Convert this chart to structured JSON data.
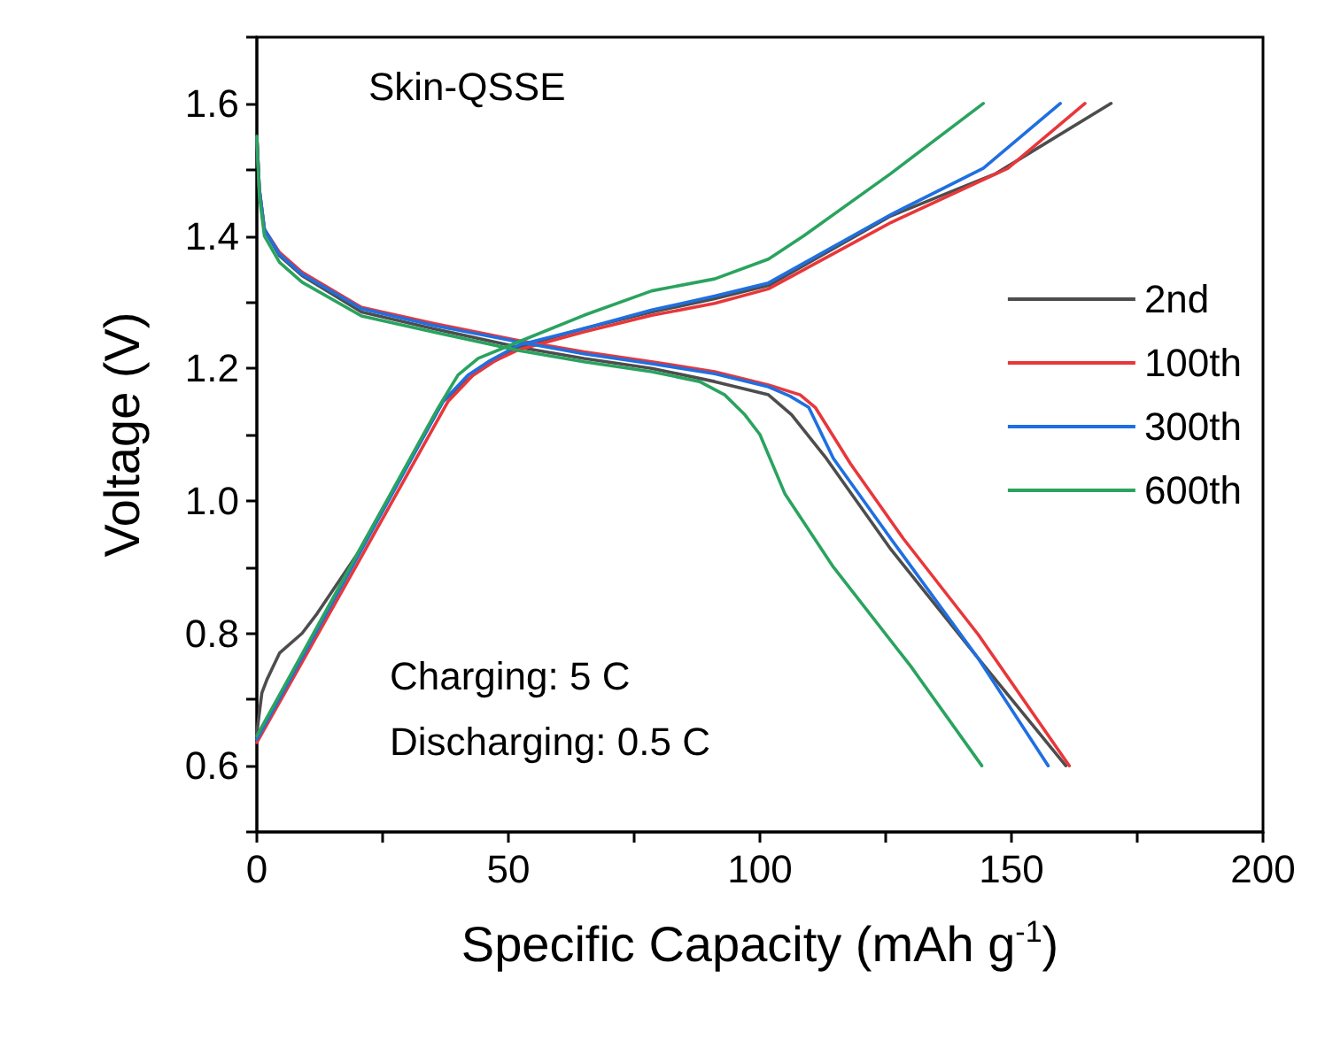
{
  "chart_data": {
    "type": "line",
    "xlabel": "Specific Capacity (mAh g$^{-1}$)",
    "ylabel": "Voltage (V)",
    "xlim": [
      0,
      200
    ],
    "ylim": [
      0.5,
      1.7
    ],
    "xticks": [
      0,
      {
        "value": 25,
        "label": null
      },
      50,
      {
        "value": 75,
        "label": null
      },
      100,
      {
        "value": 125,
        "label": null
      },
      150,
      {
        "value": 175,
        "label": null
      },
      200
    ],
    "yticks": [
      {
        "value": 0.5,
        "label": null
      },
      0.6,
      {
        "value": 0.7,
        "label": null
      },
      0.8,
      {
        "value": 0.9,
        "label": null
      },
      {
        "value": 1.0,
        "label": "1.0"
      },
      {
        "value": 1.1,
        "label": null
      },
      1.2,
      {
        "value": 1.3,
        "label": null
      },
      1.4,
      {
        "value": 1.5,
        "label": null
      },
      1.6,
      {
        "value": 1.7,
        "label": null
      }
    ],
    "grid": false,
    "legend": "right",
    "marker": "none",
    "line_style": "solid",
    "annotations": [
      "Skin-QSSE",
      "Charging: 5 C",
      "Discharging: 0.5 C"
    ],
    "series": [
      {
        "name": "2nd",
        "color": "#4d4d4d",
        "x": [
          0,
          1,
          2,
          4.5,
          9,
          12,
          20,
          37,
          43,
          47,
          52,
          65,
          78.5,
          91,
          101.7,
          126,
          146.9,
          169.8
        ],
        "values": [
          0.65,
          0.71,
          0.73,
          0.77,
          0.8,
          0.83,
          0.92,
          1.15,
          1.19,
          1.21,
          1.232,
          1.26,
          1.285,
          1.305,
          1.325,
          1.43,
          1.494,
          1.6
        ]
      },
      {
        "color": "#4d4d4d",
        "x": [
          0,
          0.5,
          1.5,
          4.5,
          9,
          20.8,
          35,
          52,
          65,
          78.5,
          91,
          101.7,
          106.3,
          113.2,
          126,
          143.4,
          160.8
        ],
        "values": [
          1.55,
          1.47,
          1.41,
          1.37,
          1.34,
          1.285,
          1.26,
          1.232,
          1.215,
          1.2,
          1.18,
          1.16,
          1.13,
          1.064,
          0.927,
          0.762,
          0.6
        ]
      },
      {
        "name": "100th",
        "color": "#e8373a",
        "x": [
          0,
          20,
          38,
          43,
          47,
          52,
          65,
          78.5,
          91,
          101.7,
          126,
          149.3,
          164.6
        ],
        "values": [
          0.635,
          0.905,
          1.15,
          1.19,
          1.21,
          1.228,
          1.255,
          1.28,
          1.298,
          1.32,
          1.42,
          1.502,
          1.6
        ]
      },
      {
        "color": "#e8373a",
        "x": [
          0,
          0.5,
          1.5,
          4.5,
          9,
          20.8,
          35,
          52,
          65,
          78.5,
          91,
          101.7,
          108,
          111,
          118,
          128.5,
          143.4,
          161.5
        ],
        "values": [
          1.55,
          1.47,
          1.41,
          1.375,
          1.345,
          1.292,
          1.268,
          1.242,
          1.225,
          1.21,
          1.195,
          1.175,
          1.16,
          1.141,
          1.056,
          0.943,
          0.798,
          0.6
        ]
      },
      {
        "name": "300th",
        "color": "#1f6fe0",
        "x": [
          0,
          20,
          37,
          42,
          46,
          52,
          65,
          78.5,
          91,
          101.7,
          126,
          144.4,
          159.7
        ],
        "values": [
          0.64,
          0.915,
          1.15,
          1.19,
          1.21,
          1.235,
          1.26,
          1.288,
          1.309,
          1.329,
          1.432,
          1.502,
          1.6
        ]
      },
      {
        "color": "#1f6fe0",
        "x": [
          0,
          0.5,
          1.5,
          4.5,
          9,
          20.8,
          35,
          52,
          65,
          78.5,
          91,
          101.7,
          106,
          109.7,
          114.6,
          126,
          143.4,
          157.3
        ],
        "values": [
          1.55,
          1.47,
          1.41,
          1.372,
          1.342,
          1.29,
          1.265,
          1.24,
          1.222,
          1.207,
          1.192,
          1.172,
          1.158,
          1.141,
          1.064,
          0.943,
          0.762,
          0.6
        ]
      },
      {
        "name": "600th",
        "color": "#2aa35f",
        "x": [
          0,
          20,
          36,
          40,
          44,
          52,
          65,
          78.5,
          91,
          101.7,
          108.7,
          126,
          144.4
        ],
        "values": [
          0.645,
          0.92,
          1.14,
          1.19,
          1.215,
          1.24,
          1.28,
          1.317,
          1.335,
          1.365,
          1.4,
          1.494,
          1.6
        ]
      },
      {
        "color": "#2aa35f",
        "x": [
          0,
          0.5,
          1.5,
          4.5,
          9,
          20.8,
          35,
          52,
          65,
          78.5,
          88,
          93,
          97,
          100,
          105,
          114.6,
          130,
          144.1
        ],
        "values": [
          1.55,
          1.46,
          1.4,
          1.36,
          1.33,
          1.279,
          1.255,
          1.227,
          1.21,
          1.195,
          1.18,
          1.16,
          1.13,
          1.1,
          1.01,
          0.9,
          0.75,
          0.6
        ]
      }
    ]
  }
}
